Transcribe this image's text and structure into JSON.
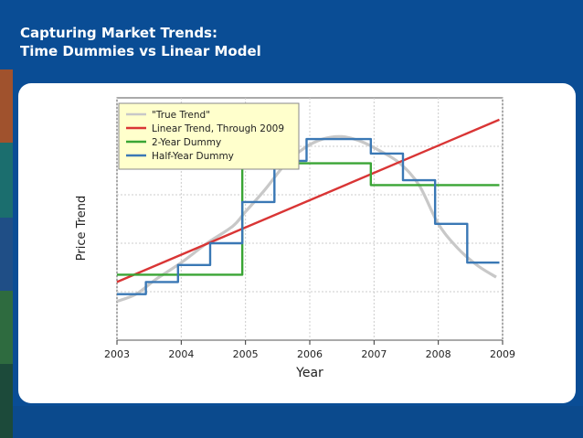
{
  "slide": {
    "title_line1": "Capturing Market Trends:",
    "title_line2": "Time Dummies vs Linear Model"
  },
  "colors": {
    "background": "#0a4d95",
    "true_trend": "#c8c8c8",
    "linear": "#d93535",
    "two_year": "#3aa535",
    "half_year": "#3a78b5",
    "legend_bg": "#ffffcc",
    "stripe_colors": [
      "#a0522d",
      "#1b6e6e",
      "#1f4e86",
      "#2e6b3f",
      "#1c4a3a"
    ]
  },
  "chart_data": {
    "type": "line",
    "xlabel": "Year",
    "ylabel": "Price Trend",
    "xlim": [
      2003,
      2009
    ],
    "ylim": [
      0,
      100
    ],
    "x_ticks": [
      2003,
      2004,
      2005,
      2006,
      2007,
      2008,
      2009
    ],
    "x_tick_labels": [
      "2003",
      "2004",
      "2005",
      "2006",
      "2007",
      "2008",
      "2009"
    ],
    "grid": true,
    "legend_position": "top-left",
    "series": [
      {
        "name": "\"True Trend\"",
        "style": "smooth",
        "x": [
          2003,
          2003.3,
          2003.6,
          2004,
          2004.4,
          2004.8,
          2005,
          2005.3,
          2005.6,
          2005.9,
          2006.2,
          2006.5,
          2006.8,
          2007.1,
          2007.4,
          2007.7,
          2008,
          2008.3,
          2008.6,
          2008.9
        ],
        "values": [
          16,
          19,
          25,
          32,
          40,
          47,
          53,
          62,
          72,
          79,
          83,
          84,
          82,
          78,
          73,
          64,
          48,
          38,
          31,
          26
        ]
      },
      {
        "name": "Linear Trend, Through 2009",
        "style": "line",
        "x": [
          2003,
          2008.95
        ],
        "values": [
          24,
          91
        ]
      },
      {
        "name": "2-Year Dummy",
        "style": "step",
        "x": [
          2003,
          2004.95,
          2004.95,
          2006.95,
          2006.95,
          2008.95
        ],
        "values": [
          27,
          27,
          73,
          73,
          64,
          64
        ]
      },
      {
        "name": "Half-Year Dummy",
        "style": "step",
        "x": [
          2003,
          2003.45,
          2003.45,
          2003.95,
          2003.95,
          2004.45,
          2004.45,
          2004.95,
          2004.95,
          2005.45,
          2005.45,
          2005.95,
          2005.95,
          2006.45,
          2006.45,
          2006.95,
          2006.95,
          2007.45,
          2007.45,
          2007.95,
          2007.95,
          2008.45,
          2008.45,
          2008.95
        ],
        "values": [
          19,
          19,
          24,
          24,
          31,
          31,
          40,
          40,
          57,
          57,
          74,
          74,
          83,
          83,
          83,
          83,
          77,
          77,
          66,
          66,
          48,
          48,
          32,
          32
        ]
      }
    ]
  }
}
